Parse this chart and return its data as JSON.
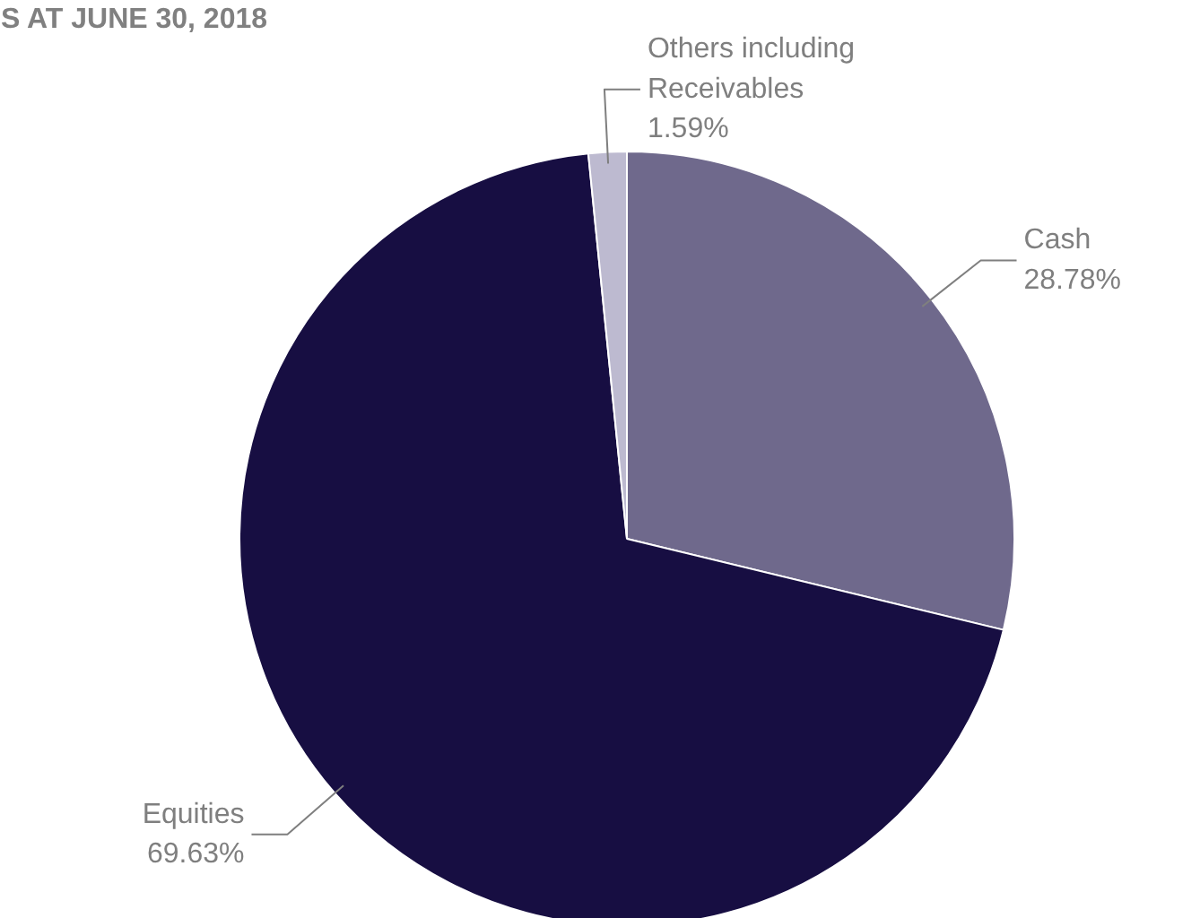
{
  "chart_data": {
    "type": "pie",
    "title": "S AT JUNE 30, 2018",
    "categories": [
      "Cash",
      "Equities",
      "Others including Receivables"
    ],
    "values": [
      28.78,
      69.63,
      1.59
    ],
    "value_labels": [
      "28.78%",
      "69.63%",
      "1.59%"
    ],
    "colors": [
      "#6f698c",
      "#170e42",
      "#bdbad0"
    ]
  }
}
